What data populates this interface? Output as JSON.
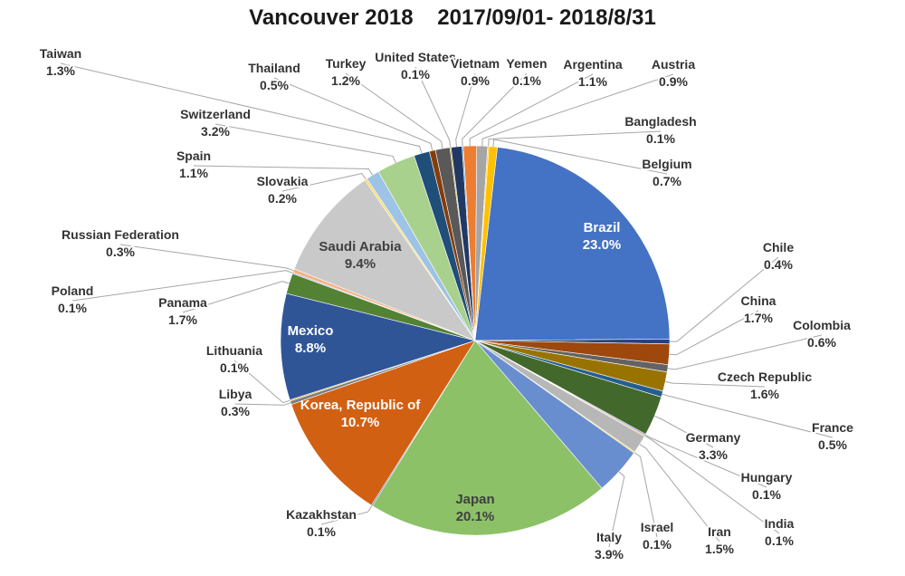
{
  "chart_data": {
    "type": "pie",
    "title": "Vancouver 2018    2017/09/01- 2018/8/31",
    "unit": "%",
    "slices": [
      {
        "name": "Argentina",
        "value": 1.1,
        "label": "1.1%",
        "color": "#ed7d31"
      },
      {
        "name": "Austria",
        "value": 0.9,
        "label": "0.9%",
        "color": "#a5a5a5"
      },
      {
        "name": "Bangladesh",
        "value": 0.1,
        "label": "0.1%",
        "color": "#ffc000"
      },
      {
        "name": "Belgium",
        "value": 0.7,
        "label": "0.7%",
        "color": "#ffc000"
      },
      {
        "name": "Brazil",
        "value": 23.0,
        "label": "23.0%",
        "color": "#4472c4"
      },
      {
        "name": "Chile",
        "value": 0.4,
        "label": "0.4%",
        "color": "#264478"
      },
      {
        "name": "China",
        "value": 1.7,
        "label": "1.7%",
        "color": "#9e480e"
      },
      {
        "name": "Colombia",
        "value": 0.6,
        "label": "0.6%",
        "color": "#636363"
      },
      {
        "name": "Czech Republic",
        "value": 1.6,
        "label": "1.6%",
        "color": "#997300"
      },
      {
        "name": "France",
        "value": 0.5,
        "label": "0.5%",
        "color": "#255e91"
      },
      {
        "name": "Germany",
        "value": 3.3,
        "label": "3.3%",
        "color": "#43682b"
      },
      {
        "name": "Hungary",
        "value": 0.1,
        "label": "0.1%",
        "color": "#698ed0"
      },
      {
        "name": "India",
        "value": 0.1,
        "label": "0.1%",
        "color": "#f1975a"
      },
      {
        "name": "Iran",
        "value": 1.5,
        "label": "1.5%",
        "color": "#b7b7b7"
      },
      {
        "name": "Israel",
        "value": 0.1,
        "label": "0.1%",
        "color": "#ffcd33"
      },
      {
        "name": "Italy",
        "value": 3.9,
        "label": "3.9%",
        "color": "#698ed0"
      },
      {
        "name": "Japan",
        "value": 20.1,
        "label": "20.1%",
        "color": "#8cc168"
      },
      {
        "name": "Kazakhstan",
        "value": 0.1,
        "label": "0.1%",
        "color": "#335aa1"
      },
      {
        "name": "Korea, Republic of",
        "value": 10.7,
        "label": "10.7%",
        "color": "#d26012"
      },
      {
        "name": "Libya",
        "value": 0.3,
        "label": "0.3%",
        "color": "#7f7f7f"
      },
      {
        "name": "Lithuania",
        "value": 0.1,
        "label": "0.1%",
        "color": "#cc9a00"
      },
      {
        "name": "Mexico",
        "value": 8.8,
        "label": "8.8%",
        "color": "#2f5597"
      },
      {
        "name": "Panama",
        "value": 1.7,
        "label": "1.7%",
        "color": "#548235"
      },
      {
        "name": "Poland",
        "value": 0.1,
        "label": "0.1%",
        "color": "#8faadc"
      },
      {
        "name": "Russian Federation",
        "value": 0.3,
        "label": "0.3%",
        "color": "#f4b183"
      },
      {
        "name": "Saudi Arabia",
        "value": 9.4,
        "label": "9.4%",
        "color": "#c9c9c9"
      },
      {
        "name": "Slovakia",
        "value": 0.2,
        "label": "0.2%",
        "color": "#ffd966"
      },
      {
        "name": "Spain",
        "value": 1.1,
        "label": "1.1%",
        "color": "#9dc3e6"
      },
      {
        "name": "Switzerland",
        "value": 3.2,
        "label": "3.2%",
        "color": "#a9d18e"
      },
      {
        "name": "Taiwan",
        "value": 1.3,
        "label": "1.3%",
        "color": "#1f4e79"
      },
      {
        "name": "Thailand",
        "value": 0.5,
        "label": "0.5%",
        "color": "#843c0c"
      },
      {
        "name": "Turkey",
        "value": 1.2,
        "label": "1.2%",
        "color": "#595959"
      },
      {
        "name": "United States",
        "value": 0.1,
        "label": "0.1%",
        "color": "#bf9000"
      },
      {
        "name": "Vietnam",
        "value": 0.9,
        "label": "0.9%",
        "color": "#203864"
      },
      {
        "name": "Yemen",
        "value": 0.1,
        "label": "0.1%",
        "color": "#5b9bd5"
      }
    ],
    "legend": "none"
  }
}
